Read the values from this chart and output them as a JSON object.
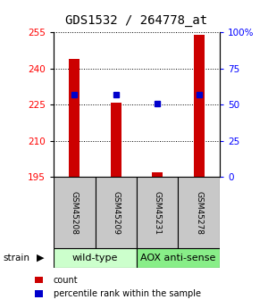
{
  "title": "GDS1532 / 264778_at",
  "samples": [
    "GSM45208",
    "GSM45209",
    "GSM45231",
    "GSM45278"
  ],
  "counts": [
    244,
    226,
    197,
    254
  ],
  "percentiles": [
    57,
    57,
    51,
    57
  ],
  "ymin": 195,
  "ymax": 255,
  "yticks_left": [
    195,
    210,
    225,
    240,
    255
  ],
  "yticks_right": [
    0,
    25,
    50,
    75,
    100
  ],
  "bar_color": "#cc0000",
  "marker_color": "#0000cc",
  "bar_width": 0.25,
  "group1_label": "wild-type",
  "group1_color": "#ccffcc",
  "group2_label": "AOX anti-sense",
  "group2_color": "#88ee88",
  "strain_label": "strain",
  "legend_count": "count",
  "legend_pct": "percentile rank within the sample",
  "title_fontsize": 10,
  "tick_fontsize": 7.5,
  "sample_fontsize": 6.5,
  "group_fontsize": 8
}
